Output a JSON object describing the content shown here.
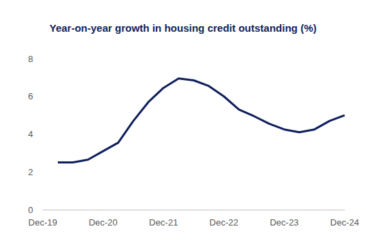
{
  "chart_data": {
    "type": "line",
    "title": "Year-on-year growth in housing credit outstanding (%)",
    "categories": [
      "Dec-19",
      null,
      null,
      null,
      "Dec-20",
      null,
      null,
      null,
      "Dec-21",
      null,
      null,
      null,
      "Dec-22",
      null,
      null,
      null,
      "Dec-23",
      null,
      null,
      null,
      "Dec-24"
    ],
    "values": [
      null,
      2.5,
      2.5,
      2.65,
      3.1,
      3.55,
      4.7,
      5.7,
      6.45,
      6.95,
      6.85,
      6.55,
      6.0,
      5.3,
      4.95,
      4.55,
      4.25,
      4.1,
      4.25,
      4.7,
      5.0
    ],
    "color": "#0f1f5c",
    "ylim": [
      0,
      8
    ],
    "yticks": [
      0,
      2,
      4,
      6,
      8
    ],
    "grid": false
  }
}
